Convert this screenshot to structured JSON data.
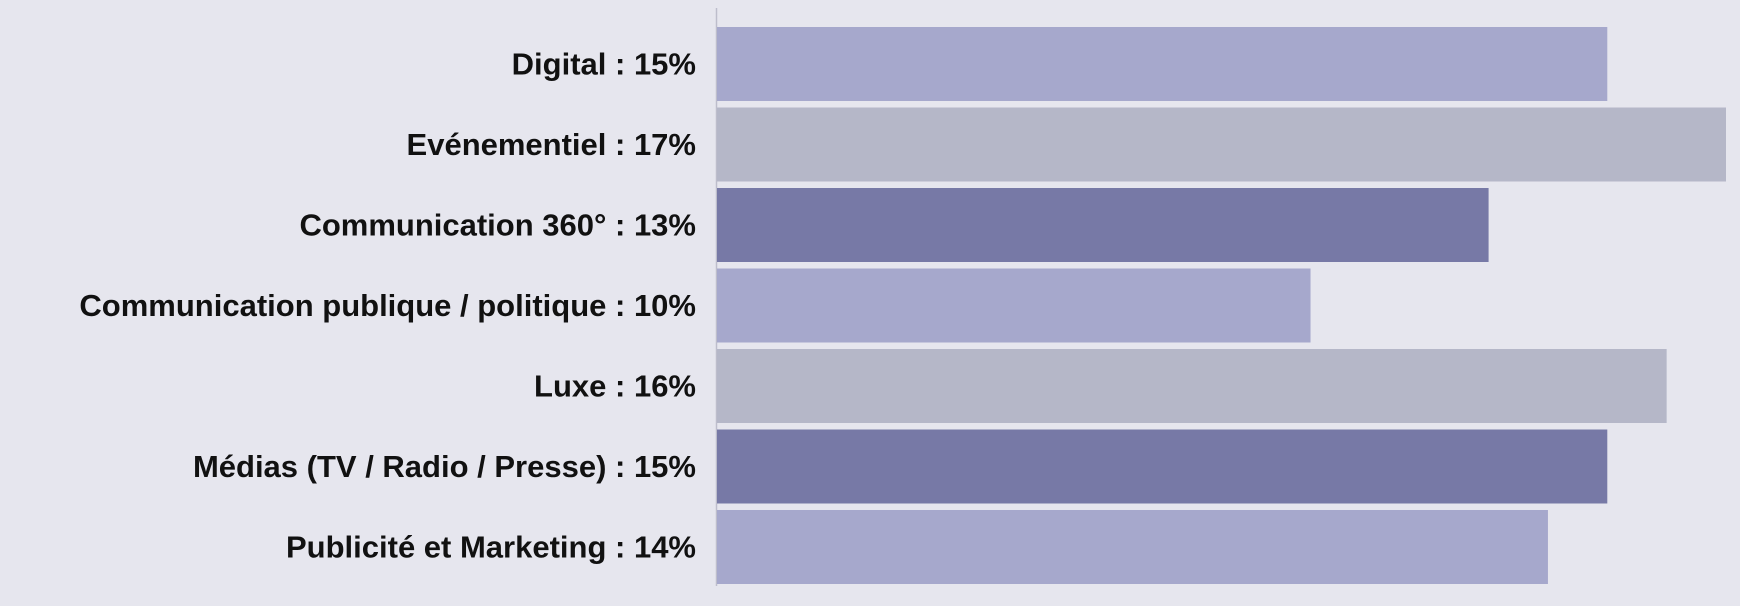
{
  "chart_data": {
    "type": "bar",
    "orientation": "horizontal",
    "categories": [
      "Digital : 15%",
      "Evénementiel : 17%",
      "Communication 360° : 13%",
      "Communication publique / politique : 10%",
      "Luxe : 16%",
      "Médias (TV / Radio / Presse) : 15%",
      "Publicité et Marketing : 14%"
    ],
    "values": [
      15,
      17,
      13,
      10,
      16,
      15,
      14
    ],
    "bar_colors": [
      "#a6a8cc",
      "#b5b7c8",
      "#7779a6",
      "#a6a8cc",
      "#b5b7c8",
      "#7779a6",
      "#a6a8cc"
    ],
    "xlim": [
      0,
      17
    ],
    "title": "",
    "xlabel": "",
    "ylabel": "",
    "grid": false,
    "legend": "none"
  },
  "colors": {
    "background": "#e6e6ee",
    "axis_line": "#bdbdcb",
    "label_text": "#111111"
  }
}
